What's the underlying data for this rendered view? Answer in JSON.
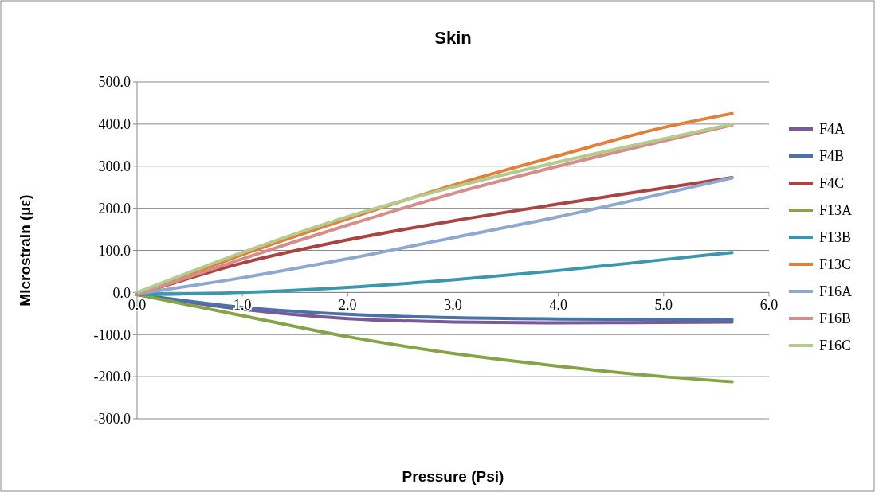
{
  "chart_data": {
    "type": "line",
    "title": "Skin",
    "xlabel": "Pressure (Psi)",
    "ylabel": "Microstrain (µε)",
    "x": [
      0,
      1,
      2,
      3,
      4,
      5,
      5.65
    ],
    "xlim": [
      0,
      6
    ],
    "xticks": [
      {
        "value": 0,
        "label": "0.0"
      },
      {
        "value": 1,
        "label": "1.0"
      },
      {
        "value": 2,
        "label": "2.0"
      },
      {
        "value": 3,
        "label": "3.0"
      },
      {
        "value": 4,
        "label": "4.0"
      },
      {
        "value": 5,
        "label": "5.0"
      },
      {
        "value": 6,
        "label": "6.0"
      }
    ],
    "ylim": [
      -300,
      500
    ],
    "yticks": [
      {
        "value": -300,
        "label": "-300.0"
      },
      {
        "value": -200,
        "label": "-200.0"
      },
      {
        "value": -100,
        "label": "-100.0"
      },
      {
        "value": 0,
        "label": "0.0"
      },
      {
        "value": 100,
        "label": "100.0"
      },
      {
        "value": 200,
        "label": "200.0"
      },
      {
        "value": 300,
        "label": "300.0"
      },
      {
        "value": 400,
        "label": "400.0"
      },
      {
        "value": 500,
        "label": "500.0"
      }
    ],
    "grid": "y",
    "legend": "right",
    "marker": "none",
    "line_style": "solid",
    "series": [
      {
        "name": "F4A",
        "color": "#7a5a96",
        "values": [
          -5,
          -40,
          -62,
          -70,
          -72,
          -71,
          -70
        ]
      },
      {
        "name": "F4B",
        "color": "#4a72a8",
        "values": [
          -5,
          -35,
          -52,
          -60,
          -63,
          -64,
          -65
        ]
      },
      {
        "name": "F4C",
        "color": "#a94442",
        "values": [
          -5,
          70,
          125,
          170,
          210,
          248,
          273
        ]
      },
      {
        "name": "F13A",
        "color": "#86a447",
        "values": [
          -5,
          -55,
          -105,
          -145,
          -175,
          -200,
          -212
        ]
      },
      {
        "name": "F13B",
        "color": "#3c97ae",
        "values": [
          -5,
          0,
          12,
          30,
          52,
          78,
          95
        ]
      },
      {
        "name": "F13C",
        "color": "#e0803a",
        "values": [
          -5,
          90,
          175,
          255,
          325,
          392,
          425
        ]
      },
      {
        "name": "F16A",
        "color": "#8fa8d0",
        "values": [
          -3,
          35,
          80,
          130,
          180,
          235,
          272
        ]
      },
      {
        "name": "F16B",
        "color": "#d58e8c",
        "values": [
          -5,
          80,
          160,
          235,
          300,
          360,
          398
        ]
      },
      {
        "name": "F16C",
        "color": "#b3cc8e",
        "values": [
          0,
          95,
          180,
          250,
          310,
          365,
          400
        ]
      }
    ]
  }
}
